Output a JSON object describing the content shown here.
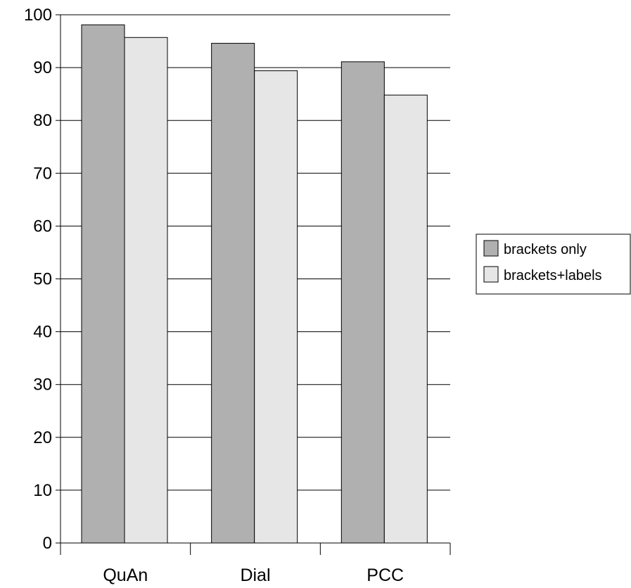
{
  "chart_data": {
    "type": "bar",
    "title": "",
    "xlabel": "",
    "ylabel": "",
    "categories": [
      "QuAn",
      "Dial",
      "PCC"
    ],
    "series": [
      {
        "name": "brackets only",
        "values": [
          98.1,
          94.6,
          91.1
        ],
        "color": "#b0b0b0"
      },
      {
        "name": "brackets+labels",
        "values": [
          95.7,
          89.4,
          84.8
        ],
        "color": "#e6e6e6"
      }
    ],
    "ylim": [
      0,
      100
    ],
    "yticks": [
      "0",
      "10",
      "20",
      "30",
      "40",
      "50",
      "60",
      "70",
      "80",
      "90",
      "100"
    ],
    "grid": true,
    "legend_position": "right"
  }
}
